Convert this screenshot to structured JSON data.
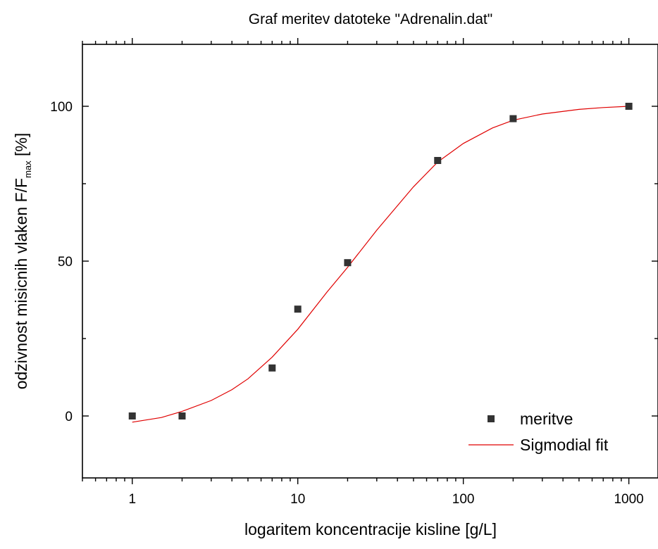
{
  "chart_data": {
    "type": "scatter",
    "title": "Graf meritev datoteke \"Adrenalin.dat\"",
    "xlabel": "logaritem koncentracije kisline [g/L]",
    "ylabel": {
      "main": "odzivnost misicnih vlaken F/F",
      "subscript": "max",
      "suffix": " [%]"
    },
    "x_scale": "log",
    "xlim": [
      0.5,
      1500
    ],
    "ylim": [
      -20,
      120
    ],
    "x_ticks": [
      1,
      10,
      100,
      1000
    ],
    "x_tick_labels": [
      "1",
      "10",
      "100",
      "1000"
    ],
    "y_ticks": [
      0,
      50,
      100
    ],
    "y_tick_labels": [
      "0",
      "50",
      "100"
    ],
    "grid": false,
    "legend_position": "bottom-right",
    "series": [
      {
        "name": "meritve",
        "kind": "points",
        "color": "#333333",
        "x": [
          1,
          2,
          7,
          10,
          20,
          70,
          200,
          1000
        ],
        "y": [
          0,
          0,
          15.5,
          34.5,
          49.5,
          82.5,
          96,
          100
        ]
      },
      {
        "name": "Sigmodial fit",
        "kind": "line",
        "color": "#e00000",
        "x": [
          1,
          1.5,
          2,
          3,
          4,
          5,
          7,
          10,
          15,
          20,
          30,
          50,
          70,
          100,
          150,
          200,
          300,
          500,
          700,
          1000
        ],
        "y": [
          -2,
          -0.5,
          1.5,
          5,
          8.5,
          12,
          19,
          28,
          40,
          48,
          60,
          74,
          82,
          88,
          93,
          95.5,
          97.5,
          99,
          99.6,
          100
        ]
      }
    ]
  }
}
